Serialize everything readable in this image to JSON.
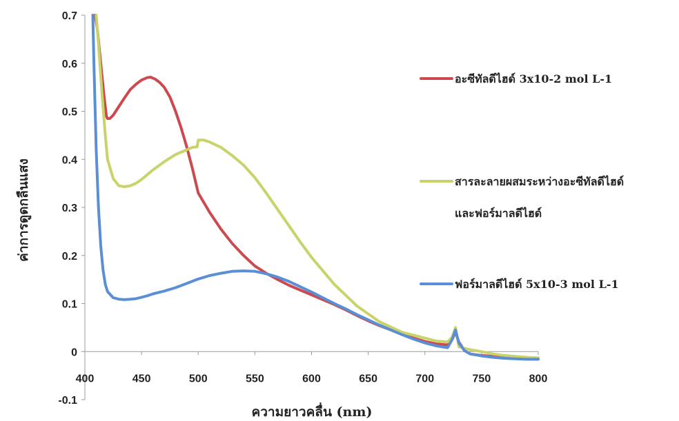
{
  "chart_data": {
    "type": "line",
    "xlabel": "ความยาวคลื่น (nm)",
    "ylabel": "ค่าการดูดกลืนแสง",
    "xlim": [
      400,
      800
    ],
    "ylim": [
      -0.1,
      0.7
    ],
    "xticks": [
      "400",
      "450",
      "500",
      "550",
      "600",
      "650",
      "700",
      "750",
      "800"
    ],
    "yticks": [
      "0.7",
      "0.6",
      "0.5",
      "0.4",
      "0.3",
      "0.2",
      "0.1",
      "0",
      "-0.1"
    ],
    "grid": false,
    "legend_position": "right",
    "series": [
      {
        "name": "อะซีทัลดีไฮด์ 3x10-2 mol L-1",
        "color": "#cc4a4f",
        "x": [
          409,
          411,
          414,
          417,
          419,
          420,
          422,
          425,
          430,
          435,
          440,
          445,
          450,
          455,
          458,
          462,
          466,
          470,
          475,
          480,
          485,
          490,
          495,
          500,
          510,
          520,
          530,
          540,
          550,
          560,
          570,
          580,
          590,
          600,
          610,
          620,
          630,
          640,
          650,
          660,
          670,
          680,
          690,
          700,
          710,
          720,
          724,
          727,
          730,
          735,
          740,
          750,
          760,
          770,
          780,
          790,
          800
        ],
        "y": [
          0.7,
          0.67,
          0.6,
          0.53,
          0.49,
          0.485,
          0.485,
          0.492,
          0.51,
          0.528,
          0.545,
          0.556,
          0.565,
          0.57,
          0.571,
          0.567,
          0.56,
          0.55,
          0.53,
          0.5,
          0.465,
          0.425,
          0.38,
          0.33,
          0.29,
          0.255,
          0.225,
          0.2,
          0.178,
          0.163,
          0.15,
          0.138,
          0.128,
          0.118,
          0.108,
          0.098,
          0.087,
          0.075,
          0.064,
          0.054,
          0.045,
          0.036,
          0.028,
          0.021,
          0.016,
          0.014,
          0.025,
          0.04,
          0.02,
          0.002,
          -0.005,
          -0.008,
          -0.01,
          -0.012,
          -0.014,
          -0.015,
          -0.015
        ]
      },
      {
        "name": "สารละลายผสมระหว่างอะซีทัลดีไฮด์ และฟอร์มาลดีไฮด์",
        "color": "#c8d36a",
        "x": [
          410,
          412,
          415,
          418,
          420,
          425,
          430,
          435,
          440,
          445,
          450,
          455,
          460,
          470,
          480,
          490,
          495,
          499,
          500,
          501,
          505,
          510,
          520,
          530,
          540,
          550,
          560,
          570,
          580,
          590,
          600,
          620,
          640,
          660,
          680,
          700,
          710,
          720,
          724,
          727,
          730,
          740,
          750,
          760,
          770,
          780,
          790,
          800
        ],
        "y": [
          0.7,
          0.64,
          0.54,
          0.45,
          0.4,
          0.36,
          0.345,
          0.343,
          0.345,
          0.35,
          0.358,
          0.368,
          0.378,
          0.395,
          0.41,
          0.42,
          0.425,
          0.426,
          0.44,
          0.44,
          0.44,
          0.436,
          0.425,
          0.408,
          0.388,
          0.362,
          0.33,
          0.296,
          0.262,
          0.228,
          0.196,
          0.14,
          0.095,
          0.062,
          0.04,
          0.028,
          0.022,
          0.02,
          0.03,
          0.05,
          0.01,
          0.004,
          0.0,
          -0.005,
          -0.008,
          -0.01,
          -0.012,
          -0.013
        ]
      },
      {
        "name": "ฟอร์มาลดีไฮด์ 5x10-3 mol L-1",
        "color": "#5a8fd6",
        "x": [
          407,
          408,
          410,
          412,
          414,
          416,
          418,
          420,
          425,
          430,
          435,
          440,
          445,
          450,
          455,
          460,
          470,
          480,
          490,
          500,
          510,
          520,
          530,
          540,
          550,
          560,
          570,
          580,
          590,
          600,
          610,
          620,
          630,
          640,
          650,
          660,
          670,
          680,
          690,
          700,
          710,
          715,
          720,
          724,
          727,
          730,
          735,
          740,
          750,
          760,
          770,
          780,
          790,
          800
        ],
        "y": [
          0.7,
          0.6,
          0.42,
          0.3,
          0.22,
          0.17,
          0.14,
          0.125,
          0.112,
          0.109,
          0.108,
          0.109,
          0.11,
          0.113,
          0.116,
          0.12,
          0.126,
          0.133,
          0.142,
          0.151,
          0.158,
          0.163,
          0.167,
          0.168,
          0.167,
          0.162,
          0.155,
          0.146,
          0.135,
          0.124,
          0.112,
          0.1,
          0.089,
          0.077,
          0.066,
          0.055,
          0.045,
          0.035,
          0.026,
          0.018,
          0.012,
          0.01,
          0.008,
          0.025,
          0.045,
          0.018,
          0.002,
          -0.005,
          -0.009,
          -0.012,
          -0.014,
          -0.015,
          -0.016,
          -0.016
        ]
      }
    ],
    "legend": [
      {
        "lines": [
          "อะซีทัลดีไฮด์ 3x10-2 mol L-1"
        ]
      },
      {
        "lines": [
          "สารละลายผสมระหว่างอะซีทัลดีไฮด์",
          "และฟอร์มาลดีไฮด์"
        ]
      },
      {
        "lines": [
          "ฟอร์มาลดีไฮด์ 5x10-3 mol L-1"
        ]
      }
    ]
  }
}
